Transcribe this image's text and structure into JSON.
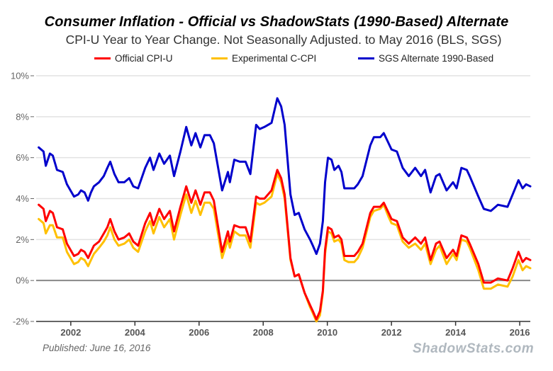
{
  "chart_data": {
    "type": "line",
    "title": "Consumer Inflation - Official vs ShadowStats (1990-Based) Alternate",
    "subtitle": "CPI-U Year to Year Change. Not Seasonally Adjusted. to May 2016  (BLS, SGS)",
    "xlabel": "",
    "ylabel": "",
    "xlim": [
      2000.92,
      2016.33
    ],
    "ylim": [
      -2,
      10
    ],
    "y_ticks": [
      -2,
      0,
      2,
      4,
      6,
      8,
      10
    ],
    "y_tick_labels": [
      "-2%",
      "0%",
      "2%",
      "4%",
      "6%",
      "8%",
      "10%"
    ],
    "x_ticks": [
      2002,
      2004,
      2006,
      2008,
      2010,
      2012,
      2014,
      2016
    ],
    "x_tick_labels": [
      "2002",
      "2004",
      "2006",
      "2008",
      "2010",
      "2012",
      "2014",
      "2016"
    ],
    "grid": true,
    "legend_position": "top-center",
    "series": [
      {
        "name": "Official CPI-U",
        "color": "#ff0000",
        "x": [
          2001.0,
          2001.15,
          2001.22,
          2001.35,
          2001.44,
          2001.57,
          2001.75,
          2001.88,
          2002.1,
          2002.23,
          2002.32,
          2002.43,
          2002.54,
          2002.63,
          2002.72,
          2002.88,
          2003.03,
          2003.14,
          2003.23,
          2003.36,
          2003.49,
          2003.67,
          2003.82,
          2003.95,
          2004.1,
          2004.32,
          2004.47,
          2004.58,
          2004.76,
          2004.91,
          2005.09,
          2005.22,
          2005.42,
          2005.6,
          2005.76,
          2005.89,
          2006.04,
          2006.17,
          2006.34,
          2006.46,
          2006.72,
          2006.9,
          2006.96,
          2007.1,
          2007.27,
          2007.45,
          2007.6,
          2007.78,
          2007.89,
          2008.04,
          2008.26,
          2008.44,
          2008.56,
          2008.67,
          2008.85,
          2008.98,
          2009.11,
          2009.29,
          2009.46,
          2009.55,
          2009.66,
          2009.77,
          2009.86,
          2009.93,
          2010.02,
          2010.13,
          2010.22,
          2010.35,
          2010.44,
          2010.53,
          2010.66,
          2010.84,
          2010.95,
          2011.1,
          2011.34,
          2011.45,
          2011.65,
          2011.76,
          2011.91,
          2012.0,
          2012.17,
          2012.35,
          2012.54,
          2012.74,
          2012.92,
          2013.05,
          2013.22,
          2013.39,
          2013.5,
          2013.72,
          2013.92,
          2014.03,
          2014.18,
          2014.35,
          2014.44,
          2014.71,
          2014.88,
          2015.1,
          2015.32,
          2015.62,
          2015.78,
          2015.96,
          2016.09,
          2016.2,
          2016.33
        ],
        "values": [
          3.7,
          3.5,
          2.9,
          3.4,
          3.3,
          2.6,
          2.5,
          1.8,
          1.2,
          1.3,
          1.5,
          1.4,
          1.1,
          1.4,
          1.7,
          1.9,
          2.3,
          2.6,
          3.0,
          2.4,
          2.0,
          2.1,
          2.3,
          1.9,
          1.7,
          2.8,
          3.3,
          2.7,
          3.5,
          3.0,
          3.4,
          2.4,
          3.6,
          4.6,
          3.8,
          4.4,
          3.7,
          4.3,
          4.3,
          3.9,
          1.4,
          2.4,
          1.9,
          2.7,
          2.6,
          2.6,
          1.9,
          4.1,
          4.0,
          4.0,
          4.4,
          5.4,
          5.0,
          4.2,
          1.1,
          0.2,
          0.3,
          -0.6,
          -1.2,
          -1.5,
          -1.9,
          -1.5,
          -0.5,
          1.5,
          2.6,
          2.5,
          2.1,
          2.2,
          2.0,
          1.2,
          1.2,
          1.2,
          1.4,
          1.8,
          3.3,
          3.6,
          3.6,
          3.8,
          3.3,
          3.0,
          2.9,
          2.1,
          1.8,
          2.1,
          1.8,
          2.1,
          1.0,
          1.8,
          1.9,
          1.1,
          1.5,
          1.2,
          2.2,
          2.1,
          1.8,
          0.8,
          -0.1,
          -0.1,
          0.1,
          0.0,
          0.6,
          1.4,
          0.9,
          1.1,
          1.0
        ]
      },
      {
        "name": "Experimental C-CPI",
        "color": "#ffc000",
        "x": [
          2001.0,
          2001.15,
          2001.22,
          2001.35,
          2001.44,
          2001.57,
          2001.75,
          2001.88,
          2002.1,
          2002.23,
          2002.32,
          2002.43,
          2002.54,
          2002.63,
          2002.72,
          2002.88,
          2003.03,
          2003.14,
          2003.23,
          2003.36,
          2003.49,
          2003.67,
          2003.82,
          2003.95,
          2004.1,
          2004.32,
          2004.47,
          2004.58,
          2004.76,
          2004.91,
          2005.09,
          2005.22,
          2005.42,
          2005.6,
          2005.76,
          2005.89,
          2006.04,
          2006.17,
          2006.34,
          2006.46,
          2006.72,
          2006.9,
          2006.96,
          2007.1,
          2007.27,
          2007.45,
          2007.6,
          2007.78,
          2007.89,
          2008.04,
          2008.26,
          2008.44,
          2008.56,
          2008.67,
          2008.85,
          2008.98,
          2009.11,
          2009.29,
          2009.46,
          2009.55,
          2009.66,
          2009.77,
          2009.86,
          2009.93,
          2010.02,
          2010.13,
          2010.22,
          2010.35,
          2010.44,
          2010.53,
          2010.66,
          2010.84,
          2010.95,
          2011.1,
          2011.34,
          2011.45,
          2011.65,
          2011.76,
          2011.91,
          2012.0,
          2012.17,
          2012.35,
          2012.54,
          2012.74,
          2012.92,
          2013.05,
          2013.22,
          2013.39,
          2013.5,
          2013.72,
          2013.92,
          2014.03,
          2014.18,
          2014.35,
          2014.44,
          2014.71,
          2014.88,
          2015.1,
          2015.32,
          2015.62,
          2015.78,
          2015.96,
          2016.09,
          2016.2,
          2016.33
        ],
        "values": [
          3.0,
          2.8,
          2.3,
          2.7,
          2.7,
          2.1,
          2.1,
          1.4,
          0.8,
          0.9,
          1.1,
          1.0,
          0.7,
          1.0,
          1.3,
          1.6,
          1.9,
          2.2,
          2.6,
          2.0,
          1.7,
          1.8,
          2.0,
          1.6,
          1.4,
          2.4,
          2.9,
          2.3,
          3.1,
          2.6,
          3.0,
          2.0,
          3.2,
          4.2,
          3.3,
          3.9,
          3.2,
          3.8,
          3.8,
          3.5,
          1.1,
          2.0,
          1.6,
          2.4,
          2.2,
          2.2,
          1.6,
          3.8,
          3.7,
          3.8,
          4.1,
          5.2,
          4.8,
          4.0,
          1.0,
          0.2,
          0.3,
          -0.6,
          -1.3,
          -1.6,
          -2.0,
          -1.7,
          -0.6,
          1.3,
          2.4,
          2.3,
          1.9,
          2.0,
          1.8,
          1.0,
          0.9,
          0.9,
          1.1,
          1.6,
          3.1,
          3.4,
          3.5,
          3.7,
          3.1,
          2.8,
          2.7,
          1.9,
          1.6,
          1.8,
          1.5,
          1.8,
          0.8,
          1.5,
          1.7,
          0.8,
          1.3,
          1.0,
          2.0,
          1.9,
          1.6,
          0.5,
          -0.4,
          -0.4,
          -0.2,
          -0.3,
          0.2,
          1.0,
          0.5,
          0.7,
          0.6
        ]
      },
      {
        "name": "SGS  Alternate 1990-Based",
        "color": "#0000cc",
        "x": [
          2001.0,
          2001.15,
          2001.22,
          2001.35,
          2001.44,
          2001.57,
          2001.75,
          2001.88,
          2002.1,
          2002.23,
          2002.32,
          2002.43,
          2002.54,
          2002.63,
          2002.72,
          2002.88,
          2003.03,
          2003.14,
          2003.23,
          2003.36,
          2003.49,
          2003.67,
          2003.82,
          2003.95,
          2004.1,
          2004.32,
          2004.47,
          2004.58,
          2004.76,
          2004.91,
          2005.09,
          2005.22,
          2005.42,
          2005.6,
          2005.76,
          2005.89,
          2006.04,
          2006.17,
          2006.34,
          2006.46,
          2006.72,
          2006.9,
          2006.96,
          2007.1,
          2007.27,
          2007.45,
          2007.6,
          2007.78,
          2007.89,
          2008.04,
          2008.26,
          2008.44,
          2008.56,
          2008.67,
          2008.85,
          2008.98,
          2009.11,
          2009.29,
          2009.46,
          2009.55,
          2009.66,
          2009.77,
          2009.86,
          2009.93,
          2010.02,
          2010.13,
          2010.22,
          2010.35,
          2010.44,
          2010.53,
          2010.66,
          2010.84,
          2010.95,
          2011.1,
          2011.34,
          2011.45,
          2011.65,
          2011.76,
          2011.91,
          2012.0,
          2012.17,
          2012.35,
          2012.54,
          2012.74,
          2012.92,
          2013.05,
          2013.22,
          2013.39,
          2013.5,
          2013.72,
          2013.92,
          2014.03,
          2014.18,
          2014.35,
          2014.44,
          2014.71,
          2014.88,
          2015.1,
          2015.32,
          2015.62,
          2015.78,
          2015.96,
          2016.09,
          2016.2,
          2016.33
        ],
        "values": [
          6.5,
          6.3,
          5.6,
          6.2,
          6.1,
          5.4,
          5.3,
          4.7,
          4.1,
          4.2,
          4.4,
          4.3,
          3.9,
          4.3,
          4.6,
          4.8,
          5.1,
          5.5,
          5.8,
          5.2,
          4.8,
          4.8,
          5.0,
          4.6,
          4.5,
          5.5,
          6.0,
          5.4,
          6.2,
          5.7,
          6.1,
          5.1,
          6.3,
          7.5,
          6.6,
          7.2,
          6.5,
          7.1,
          7.1,
          6.7,
          4.4,
          5.3,
          4.8,
          5.9,
          5.8,
          5.8,
          5.2,
          7.6,
          7.4,
          7.5,
          7.7,
          8.9,
          8.5,
          7.6,
          4.2,
          3.2,
          3.3,
          2.5,
          2.0,
          1.7,
          1.3,
          1.8,
          2.9,
          4.8,
          6.0,
          5.9,
          5.4,
          5.6,
          5.3,
          4.5,
          4.5,
          4.5,
          4.7,
          5.1,
          6.6,
          7.0,
          7.0,
          7.2,
          6.7,
          6.4,
          6.3,
          5.5,
          5.1,
          5.5,
          5.1,
          5.4,
          4.3,
          5.1,
          5.2,
          4.4,
          4.8,
          4.5,
          5.5,
          5.4,
          5.1,
          4.1,
          3.5,
          3.4,
          3.7,
          3.6,
          4.2,
          4.9,
          4.5,
          4.7,
          4.6
        ]
      }
    ]
  },
  "footer": {
    "published": "Published: June 16, 2016",
    "brand": "ShadowStats.com"
  }
}
